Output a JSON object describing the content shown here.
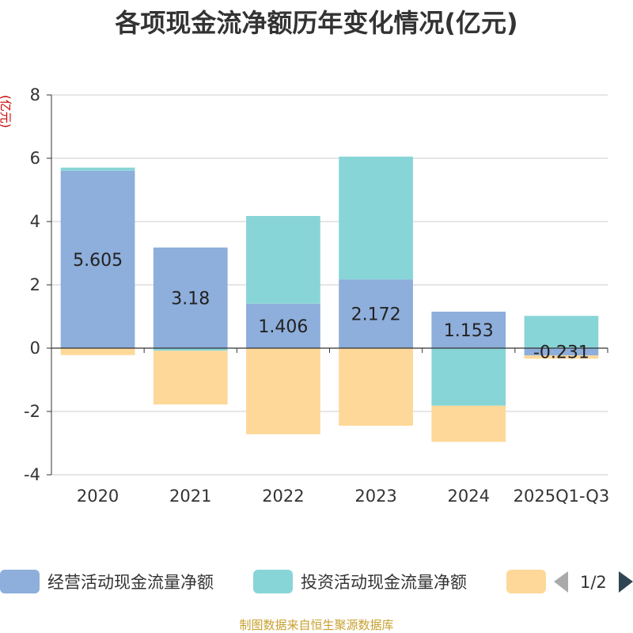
{
  "chart_data": {
    "type": "bar",
    "title": "各项现金流净额历年变化情况(亿元)",
    "ylabel": "(亿元)",
    "ylim": [
      -4,
      8
    ],
    "yticks": [
      -4,
      -2,
      0,
      2,
      4,
      6,
      8
    ],
    "categories": [
      "2020",
      "2021",
      "2022",
      "2023",
      "2024",
      "2025Q1-Q3"
    ],
    "stacked": true,
    "grid": true,
    "legend_position": "bottom",
    "series": [
      {
        "name": "经营活动现金流量净额",
        "color": "#8eaedb",
        "values": [
          5.605,
          3.18,
          1.406,
          2.172,
          1.153,
          -0.231
        ],
        "labels": [
          "5.605",
          "3.18",
          "1.406",
          "2.172",
          "1.153",
          "-0.231"
        ]
      },
      {
        "name": "投资活动现金流量净额",
        "color": "#88d5d8",
        "values": [
          0.1,
          -0.08,
          2.77,
          3.88,
          -1.82,
          1.02
        ]
      },
      {
        "name": "",
        "color": "#fed898",
        "values": [
          -0.22,
          -1.7,
          -2.72,
          -2.45,
          -1.14,
          -0.1
        ]
      }
    ]
  },
  "legend": {
    "page": "1/2"
  },
  "footer": "制图数据来自恒生聚源数据库"
}
